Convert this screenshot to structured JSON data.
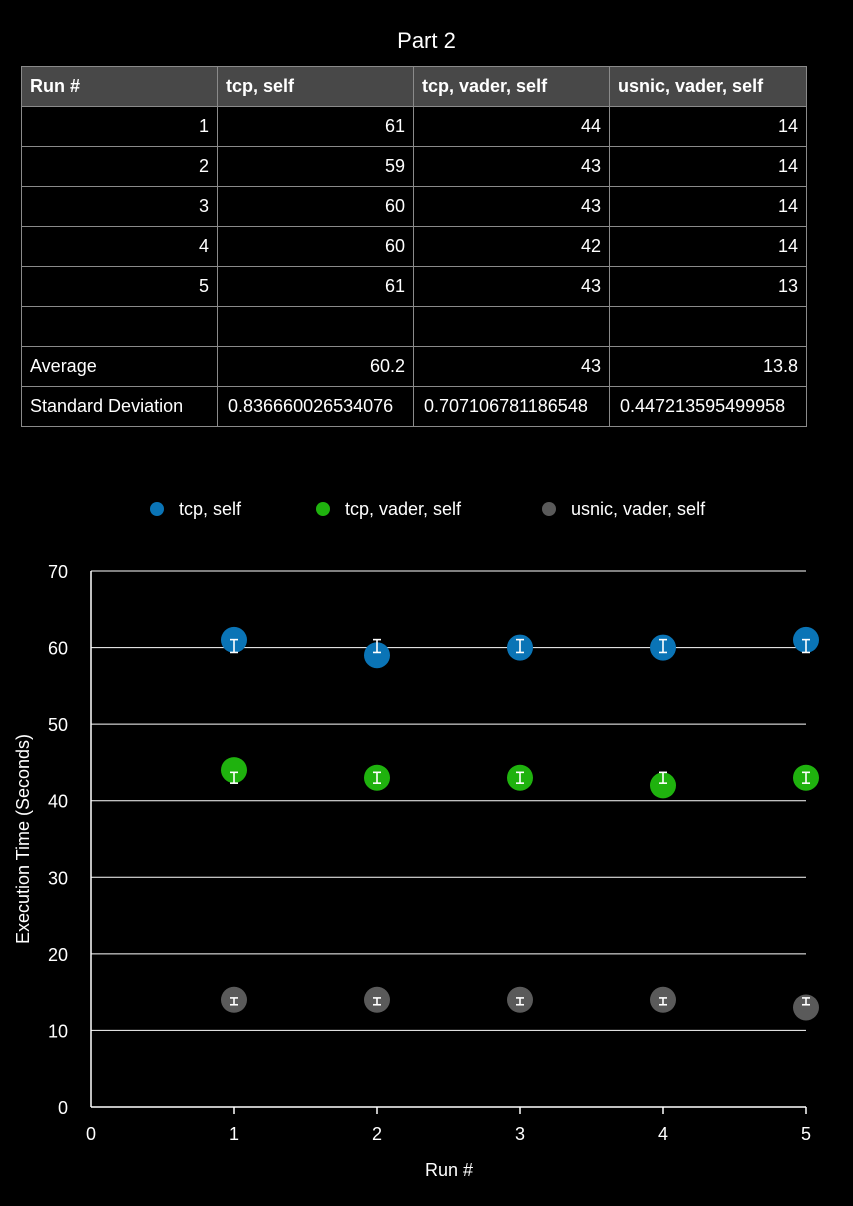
{
  "title": "Part 2",
  "table": {
    "headers": [
      "Run #",
      "tcp, self",
      "tcp, vader, self",
      "usnic, vader, self"
    ],
    "rows": [
      [
        "1",
        "61",
        "44",
        "14"
      ],
      [
        "2",
        "59",
        "43",
        "14"
      ],
      [
        "3",
        "60",
        "43",
        "14"
      ],
      [
        "4",
        "60",
        "42",
        "14"
      ],
      [
        "5",
        "61",
        "43",
        "13"
      ],
      [
        "",
        "",
        "",
        ""
      ],
      [
        "Average",
        "60.2",
        "43",
        "13.8"
      ],
      [
        "Standard Deviation",
        "0.836660026534076",
        "0.707106781186548",
        "0.447213595499958"
      ]
    ]
  },
  "chart_data": {
    "type": "scatter",
    "xlabel": "Run #",
    "ylabel": "Execution Time (Seconds)",
    "xlim": [
      0,
      5
    ],
    "ylim": [
      0,
      70
    ],
    "xticks": [
      0,
      1,
      2,
      3,
      4,
      5
    ],
    "yticks": [
      0,
      10,
      20,
      30,
      40,
      50,
      60,
      70
    ],
    "grid": true,
    "legend_position": "top",
    "x": [
      1,
      2,
      3,
      4,
      5
    ],
    "series": [
      {
        "name": "tcp, self",
        "color": "#0a74b6",
        "values": [
          61,
          59,
          60,
          60,
          61
        ],
        "mean": 60.2,
        "error": 0.836660026534076
      },
      {
        "name": "tcp, vader, self",
        "color": "#1fb20e",
        "values": [
          44,
          43,
          43,
          42,
          43
        ],
        "mean": 43,
        "error": 0.707106781186548
      },
      {
        "name": "usnic, vader, self",
        "color": "#5a5a5a",
        "values": [
          14,
          14,
          14,
          14,
          13
        ],
        "mean": 13.8,
        "error": 0.447213595499958
      }
    ]
  }
}
